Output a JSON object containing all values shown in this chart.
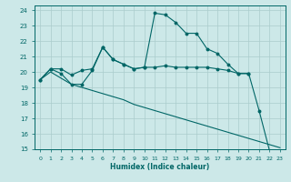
{
  "xlabel": "Humidex (Indice chaleur)",
  "background_color": "#cce8e8",
  "grid_color": "#aacccc",
  "line_color": "#006666",
  "xlim": [
    -0.5,
    23.5
  ],
  "ylim": [
    15,
    24.3
  ],
  "yticks": [
    15,
    16,
    17,
    18,
    19,
    20,
    21,
    22,
    23,
    24
  ],
  "xticks": [
    0,
    1,
    2,
    3,
    4,
    5,
    6,
    7,
    8,
    9,
    10,
    11,
    12,
    13,
    14,
    15,
    16,
    17,
    18,
    19,
    20,
    21,
    22,
    23
  ],
  "line1_x": [
    0,
    1,
    2,
    3,
    4,
    5,
    6,
    7,
    8,
    9,
    10,
    11,
    12,
    13,
    14,
    15,
    16,
    17,
    18,
    19,
    20
  ],
  "line1_y": [
    19.5,
    20.2,
    20.2,
    19.8,
    20.1,
    20.2,
    21.6,
    20.8,
    20.5,
    20.2,
    20.3,
    20.3,
    20.4,
    20.3,
    20.3,
    20.3,
    20.3,
    20.2,
    20.1,
    19.9,
    19.9
  ],
  "line2_x": [
    0,
    1,
    2,
    3,
    4,
    5,
    6,
    7,
    8,
    9,
    10,
    11,
    12,
    13,
    14,
    15,
    16,
    17,
    18,
    19,
    20,
    21,
    22,
    23
  ],
  "line2_y": [
    19.5,
    20.2,
    19.9,
    19.2,
    19.2,
    20.1,
    21.6,
    20.8,
    20.5,
    20.2,
    20.3,
    23.8,
    23.7,
    23.2,
    22.5,
    22.5,
    21.5,
    21.2,
    20.5,
    19.9,
    19.9,
    17.5,
    14.9,
    14.8
  ],
  "line3_x": [
    0,
    1,
    2,
    3,
    4,
    5,
    6,
    7,
    8,
    9,
    10,
    11,
    12,
    13,
    14,
    15,
    16,
    17,
    18,
    19,
    20,
    21,
    22,
    23
  ],
  "line3_y": [
    19.5,
    20.0,
    19.6,
    19.2,
    19.0,
    18.8,
    18.6,
    18.4,
    18.2,
    17.9,
    17.7,
    17.5,
    17.3,
    17.1,
    16.9,
    16.7,
    16.5,
    16.3,
    16.1,
    15.9,
    15.7,
    15.5,
    15.3,
    15.1
  ]
}
